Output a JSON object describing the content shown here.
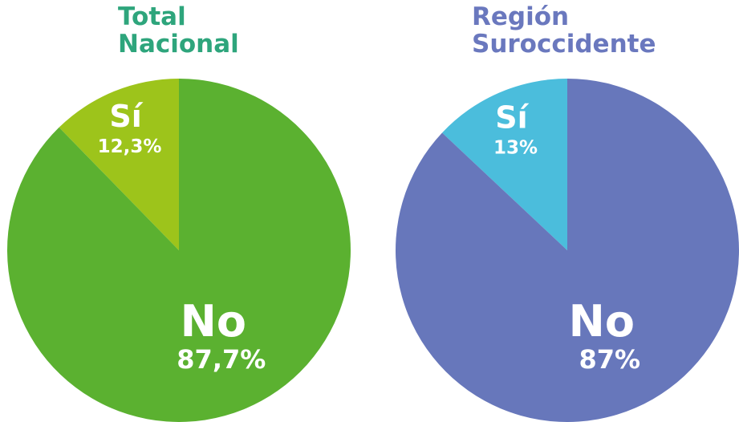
{
  "chart_data": [
    {
      "type": "pie",
      "title": "Total Nacional",
      "title_color": "#2ea57c",
      "categories": [
        "Sí",
        "No"
      ],
      "values": [
        12.3,
        87.7
      ],
      "value_labels": [
        "12,3%",
        "87,7%"
      ],
      "colors": [
        "#9dc41b",
        "#5bb130"
      ]
    },
    {
      "type": "pie",
      "title": "Región Suroccidente",
      "title_color": "#6a78be",
      "categories": [
        "Sí",
        "No"
      ],
      "values": [
        13,
        87
      ],
      "value_labels": [
        "13%",
        "87%"
      ],
      "colors": [
        "#4bbddc",
        "#6777bb"
      ]
    }
  ]
}
